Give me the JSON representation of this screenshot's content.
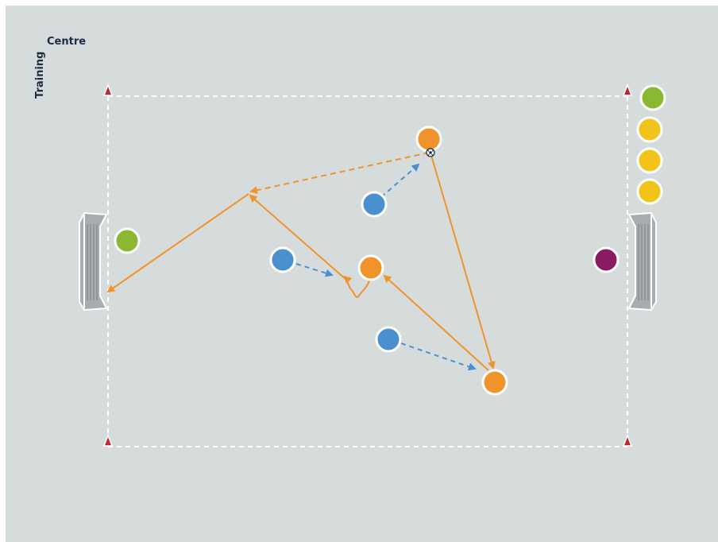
{
  "brand": {
    "word_vertical": "Training",
    "word_horizontal": "Centre"
  },
  "colors": {
    "background": "#d6dcdc",
    "pitch_line": "#ffffff",
    "cone": "#c0262d",
    "pass_arrow": "#f0932a",
    "run_arrow": "#4a90cf",
    "orange_team": "#f0932a",
    "blue_team": "#4a90cf",
    "green_keeper": "#8ab832",
    "yellow_sub": "#f2c41a",
    "purple_player": "#8a1a63",
    "goal_net": "#a8acae"
  },
  "players": [
    {
      "id": "orange-top",
      "team": "orange"
    },
    {
      "id": "orange-middle",
      "team": "orange"
    },
    {
      "id": "orange-bottom-right",
      "team": "orange"
    },
    {
      "id": "blue-top",
      "team": "blue"
    },
    {
      "id": "blue-middle-left",
      "team": "blue"
    },
    {
      "id": "blue-bottom",
      "team": "blue"
    },
    {
      "id": "green-keeper-left",
      "team": "green"
    },
    {
      "id": "green-reserve-right",
      "team": "green"
    },
    {
      "id": "yellow-reserve-1",
      "team": "yellow"
    },
    {
      "id": "yellow-reserve-2",
      "team": "yellow"
    },
    {
      "id": "yellow-reserve-3",
      "team": "yellow"
    },
    {
      "id": "purple-player-right",
      "team": "purple"
    }
  ],
  "icons": [
    "ball-icon",
    "cone-icon",
    "goal-icon"
  ]
}
